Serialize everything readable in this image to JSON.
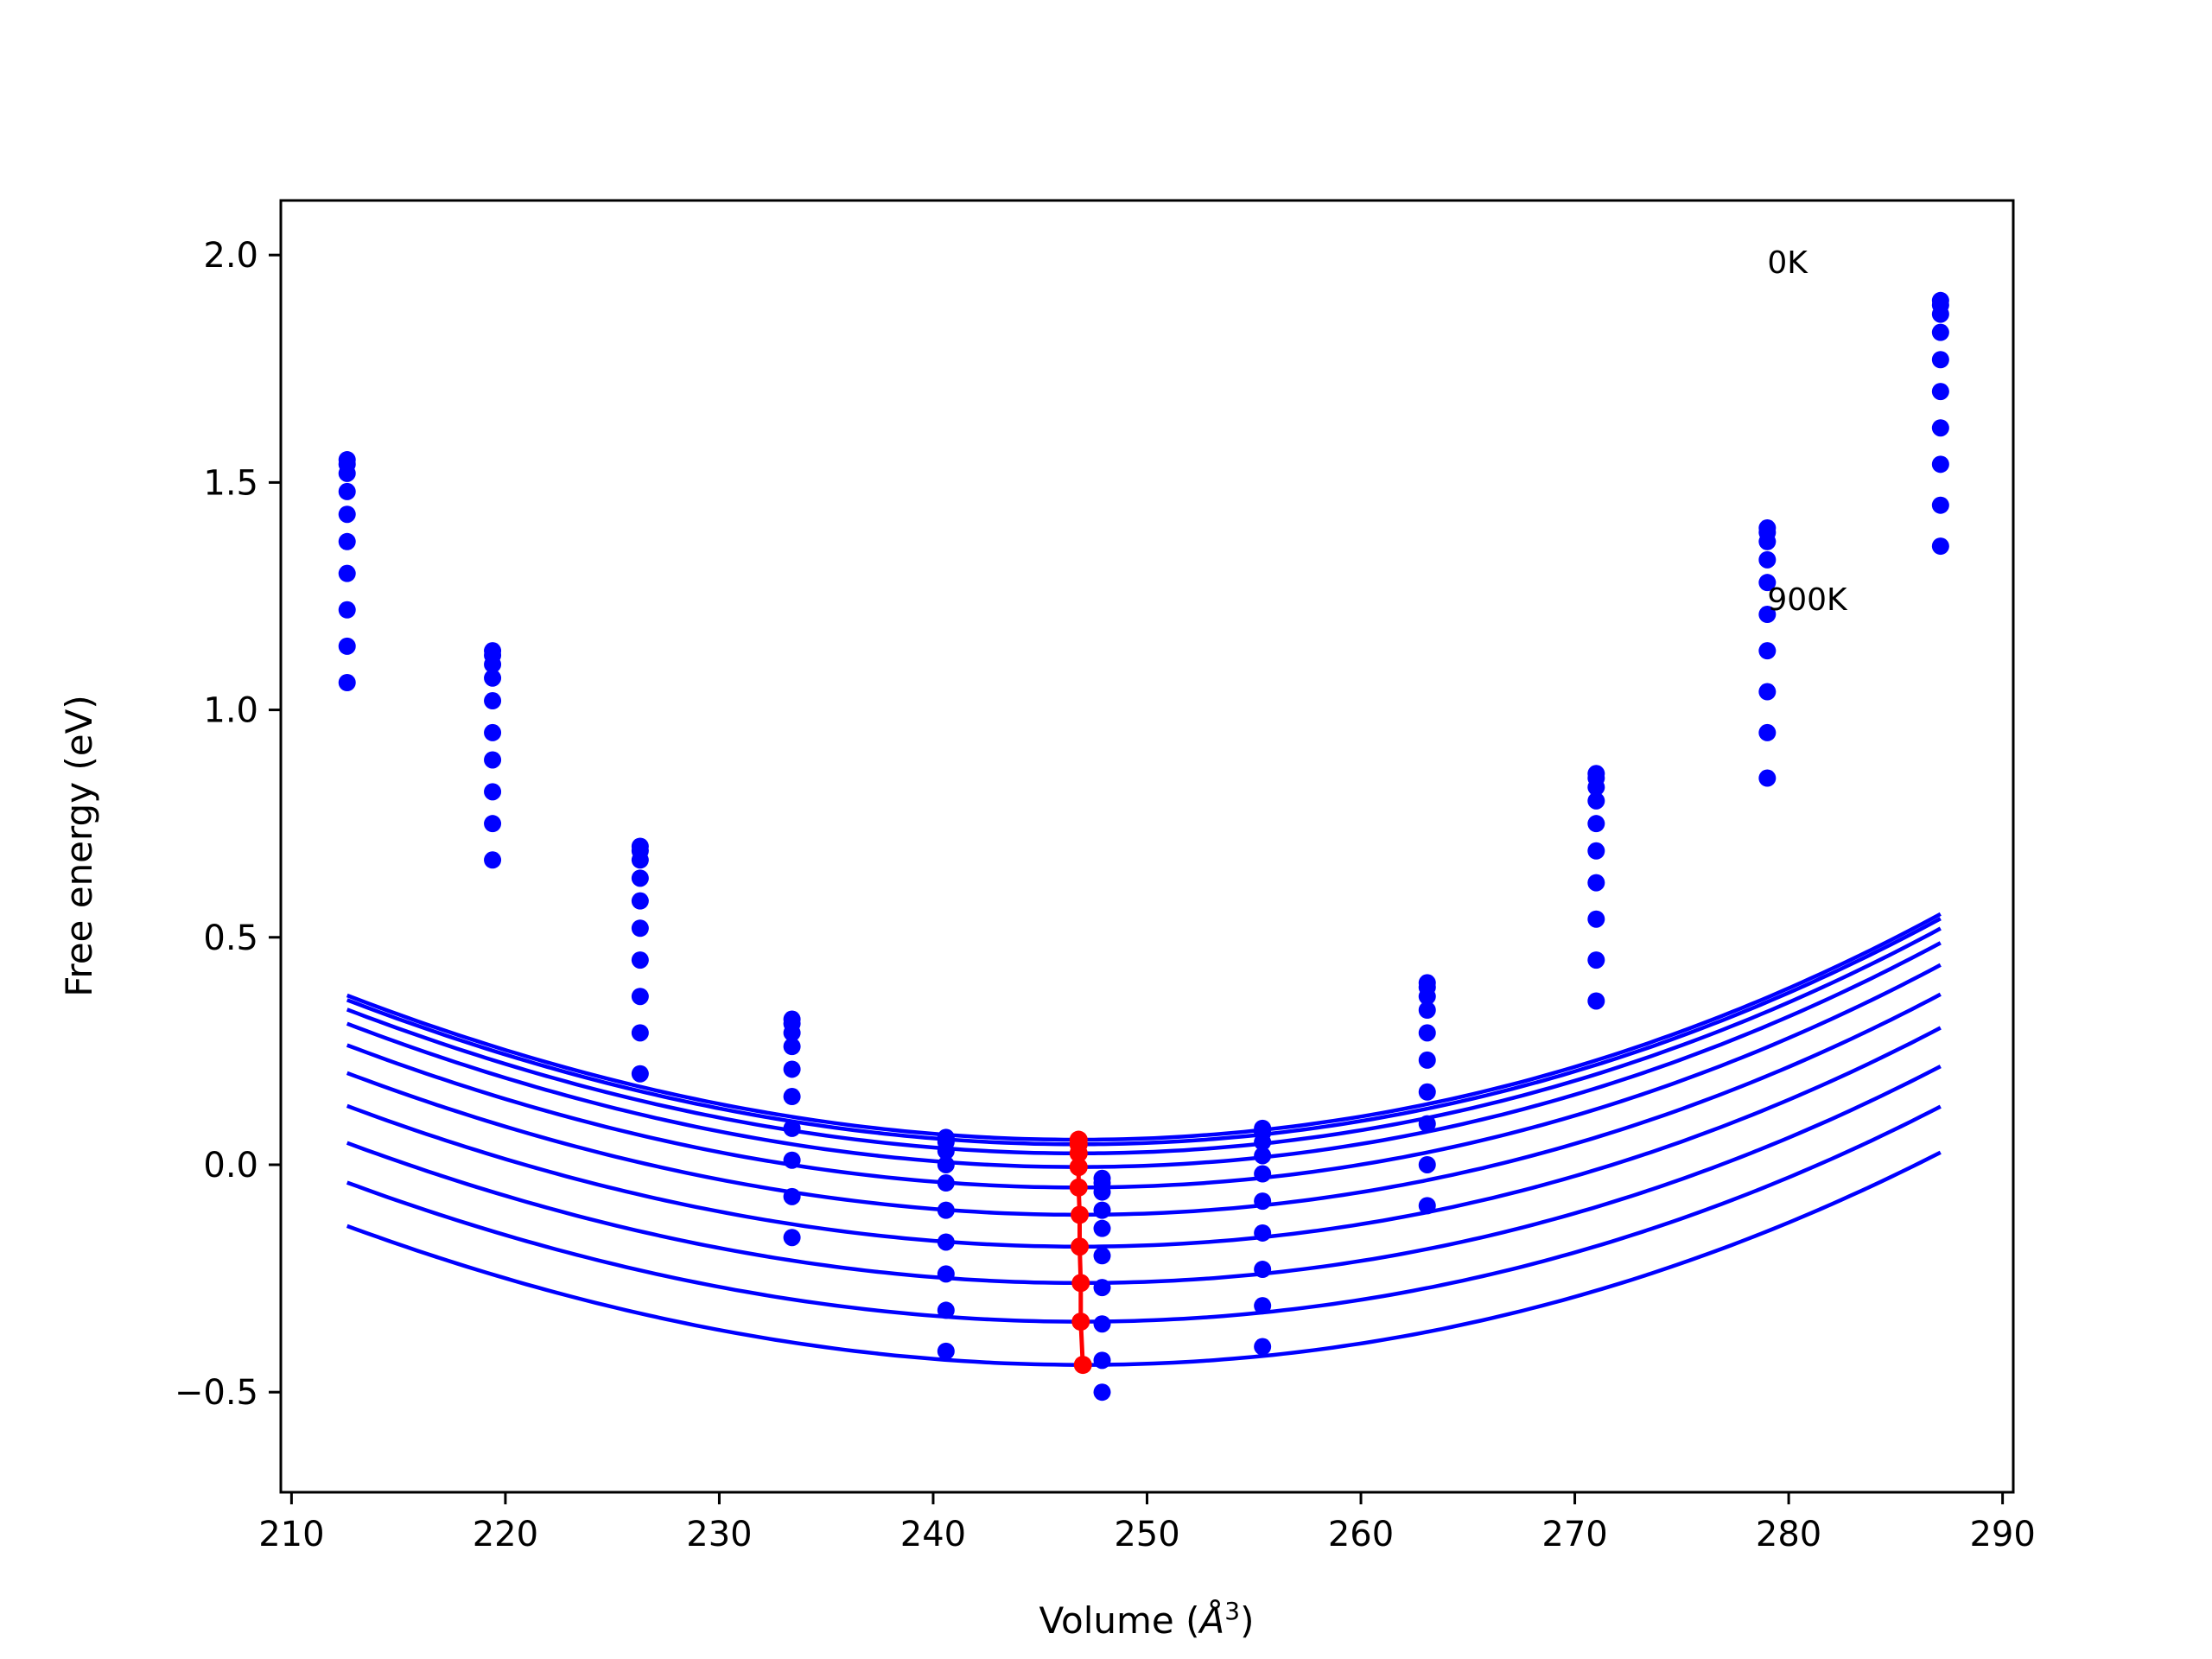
{
  "chart_data": {
    "type": "scatter",
    "title": "",
    "xlabel": "Volume (Å³)",
    "xlabel_base": "Volume (",
    "xlabel_unit": "Å",
    "xlabel_exp": "3",
    "xlabel_close": ")",
    "ylabel": "Free energy (eV)",
    "xlim": [
      209.5,
      290.5
    ],
    "ylim": [
      -0.72,
      2.12
    ],
    "x_ticks": [
      210,
      220,
      230,
      240,
      250,
      260,
      270,
      280,
      290
    ],
    "x_tick_labels": [
      "210",
      "220",
      "230",
      "240",
      "250",
      "260",
      "270",
      "280",
      "290"
    ],
    "y_ticks": [
      -0.5,
      0.0,
      0.5,
      1.0,
      1.5,
      2.0
    ],
    "y_tick_labels": [
      "−0.5",
      "0.0",
      "0.5",
      "1.0",
      "1.5",
      "2.0"
    ],
    "grid": false,
    "volumes": [
      212.6,
      219.4,
      226.3,
      233.4,
      240.6,
      247.9,
      255.4,
      263.1,
      271.0,
      279.0,
      287.1
    ],
    "fit_x_range": [
      212.6,
      287.1
    ],
    "series_color": "#0000ff",
    "min_color": "#ff0000",
    "series": [
      {
        "fit": {
          "v0": 246.8,
          "e0": 0.055,
          "k": 0.000287
        },
        "values": [
          1.55,
          1.13,
          0.7,
          0.32,
          0.06,
          -0.03,
          0.08,
          0.4,
          0.86,
          1.4,
          1.9
        ]
      },
      {
        "fit": {
          "v0": 246.8,
          "e0": 0.045,
          "k": 0.000287
        },
        "values": [
          1.54,
          1.12,
          0.69,
          0.31,
          0.05,
          -0.04,
          0.07,
          0.39,
          0.85,
          1.39,
          1.89
        ]
      },
      {
        "fit": {
          "v0": 246.8,
          "e0": 0.025,
          "k": 0.000286
        },
        "values": [
          1.52,
          1.1,
          0.67,
          0.29,
          0.03,
          -0.06,
          0.05,
          0.37,
          0.83,
          1.37,
          1.87
        ]
      },
      {
        "fit": {
          "v0": 246.8,
          "e0": -0.005,
          "k": 0.000285
        },
        "values": [
          1.48,
          1.07,
          0.63,
          0.26,
          0.0,
          -0.1,
          0.02,
          0.34,
          0.8,
          1.33,
          1.83
        ]
      },
      {
        "fit": {
          "v0": 246.8,
          "e0": -0.05,
          "k": 0.000283
        },
        "values": [
          1.43,
          1.02,
          0.58,
          0.21,
          -0.04,
          -0.14,
          -0.02,
          0.29,
          0.75,
          1.28,
          1.77
        ]
      },
      {
        "fit": {
          "v0": 246.85,
          "e0": -0.11,
          "k": 0.000281
        },
        "values": [
          1.37,
          0.95,
          0.52,
          0.15,
          -0.1,
          -0.2,
          -0.08,
          0.23,
          0.69,
          1.21,
          1.7
        ]
      },
      {
        "fit": {
          "v0": 246.85,
          "e0": -0.18,
          "k": 0.000279
        },
        "values": [
          1.3,
          0.89,
          0.45,
          0.08,
          -0.17,
          -0.27,
          -0.15,
          0.16,
          0.62,
          1.13,
          1.62
        ]
      },
      {
        "fit": {
          "v0": 246.9,
          "e0": -0.26,
          "k": 0.000277
        },
        "values": [
          1.22,
          0.82,
          0.37,
          0.01,
          -0.24,
          -0.35,
          -0.23,
          0.09,
          0.54,
          1.04,
          1.54
        ]
      },
      {
        "fit": {
          "v0": 246.9,
          "e0": -0.345,
          "k": 0.000275
        },
        "values": [
          1.14,
          0.75,
          0.29,
          -0.07,
          -0.32,
          -0.43,
          -0.31,
          0.0,
          0.45,
          0.95,
          1.45
        ]
      },
      {
        "fit": {
          "v0": 247.0,
          "e0": -0.44,
          "k": 0.000273
        },
        "values": [
          1.06,
          0.67,
          0.2,
          -0.16,
          -0.41,
          -0.5,
          -0.4,
          -0.09,
          0.36,
          0.85,
          1.36
        ]
      }
    ],
    "equilibrium_minima": {
      "volumes": [
        246.8,
        246.8,
        246.8,
        246.8,
        246.8,
        246.85,
        246.85,
        246.9,
        246.9,
        247.0
      ],
      "energies": [
        0.055,
        0.045,
        0.025,
        -0.005,
        -0.05,
        -0.11,
        -0.18,
        -0.26,
        -0.345,
        -0.44
      ]
    },
    "annotations": [
      {
        "text": "0K",
        "x": 279.0,
        "y": 1.96
      },
      {
        "text": "900K",
        "x": 279.0,
        "y": 1.22
      }
    ]
  }
}
